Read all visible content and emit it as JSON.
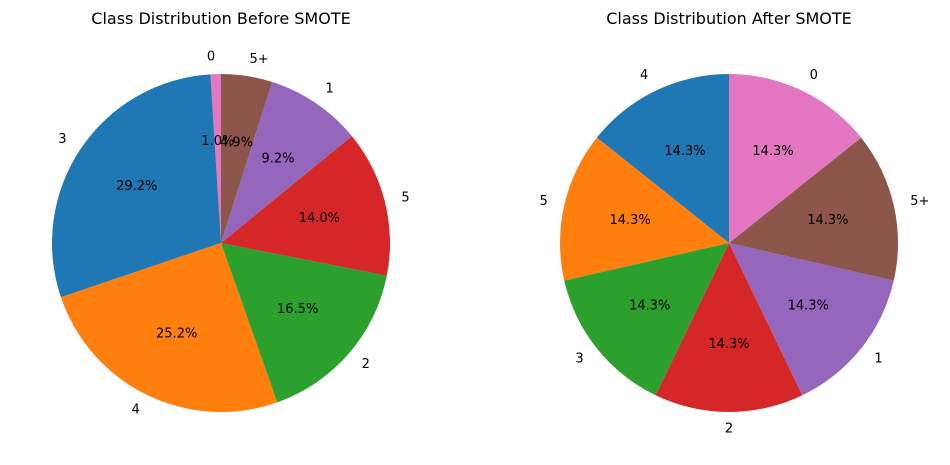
{
  "chart_data": [
    {
      "type": "pie",
      "title": "Class Distribution Before SMOTE",
      "start_angle_deg": 90,
      "direction": "counterclockwise",
      "slices": [
        {
          "label": "0",
          "value": 1.0,
          "pct_label": "1.0%",
          "color": "#e377c2"
        },
        {
          "label": "3",
          "value": 29.2,
          "pct_label": "29.2%",
          "color": "#1f77b4"
        },
        {
          "label": "4",
          "value": 25.2,
          "pct_label": "25.2%",
          "color": "#ff7f0e"
        },
        {
          "label": "2",
          "value": 16.5,
          "pct_label": "16.5%",
          "color": "#2ca02c"
        },
        {
          "label": "5",
          "value": 14.0,
          "pct_label": "14.0%",
          "color": "#d62728"
        },
        {
          "label": "1",
          "value": 9.2,
          "pct_label": "9.2%",
          "color": "#9467bd"
        },
        {
          "label": "5+",
          "value": 4.9,
          "pct_label": "4.9%",
          "color": "#8c564b"
        }
      ]
    },
    {
      "type": "pie",
      "title": "Class Distribution After SMOTE",
      "start_angle_deg": 90,
      "direction": "counterclockwise",
      "slices": [
        {
          "label": "4",
          "value": 14.3,
          "pct_label": "14.3%",
          "color": "#1f77b4"
        },
        {
          "label": "5",
          "value": 14.3,
          "pct_label": "14.3%",
          "color": "#ff7f0e"
        },
        {
          "label": "3",
          "value": 14.3,
          "pct_label": "14.3%",
          "color": "#2ca02c"
        },
        {
          "label": "2",
          "value": 14.3,
          "pct_label": "14.3%",
          "color": "#d62728"
        },
        {
          "label": "1",
          "value": 14.3,
          "pct_label": "14.3%",
          "color": "#9467bd"
        },
        {
          "label": "5+",
          "value": 14.3,
          "pct_label": "14.3%",
          "color": "#8c564b"
        },
        {
          "label": "0",
          "value": 14.3,
          "pct_label": "14.3%",
          "color": "#e377c2"
        }
      ]
    }
  ]
}
